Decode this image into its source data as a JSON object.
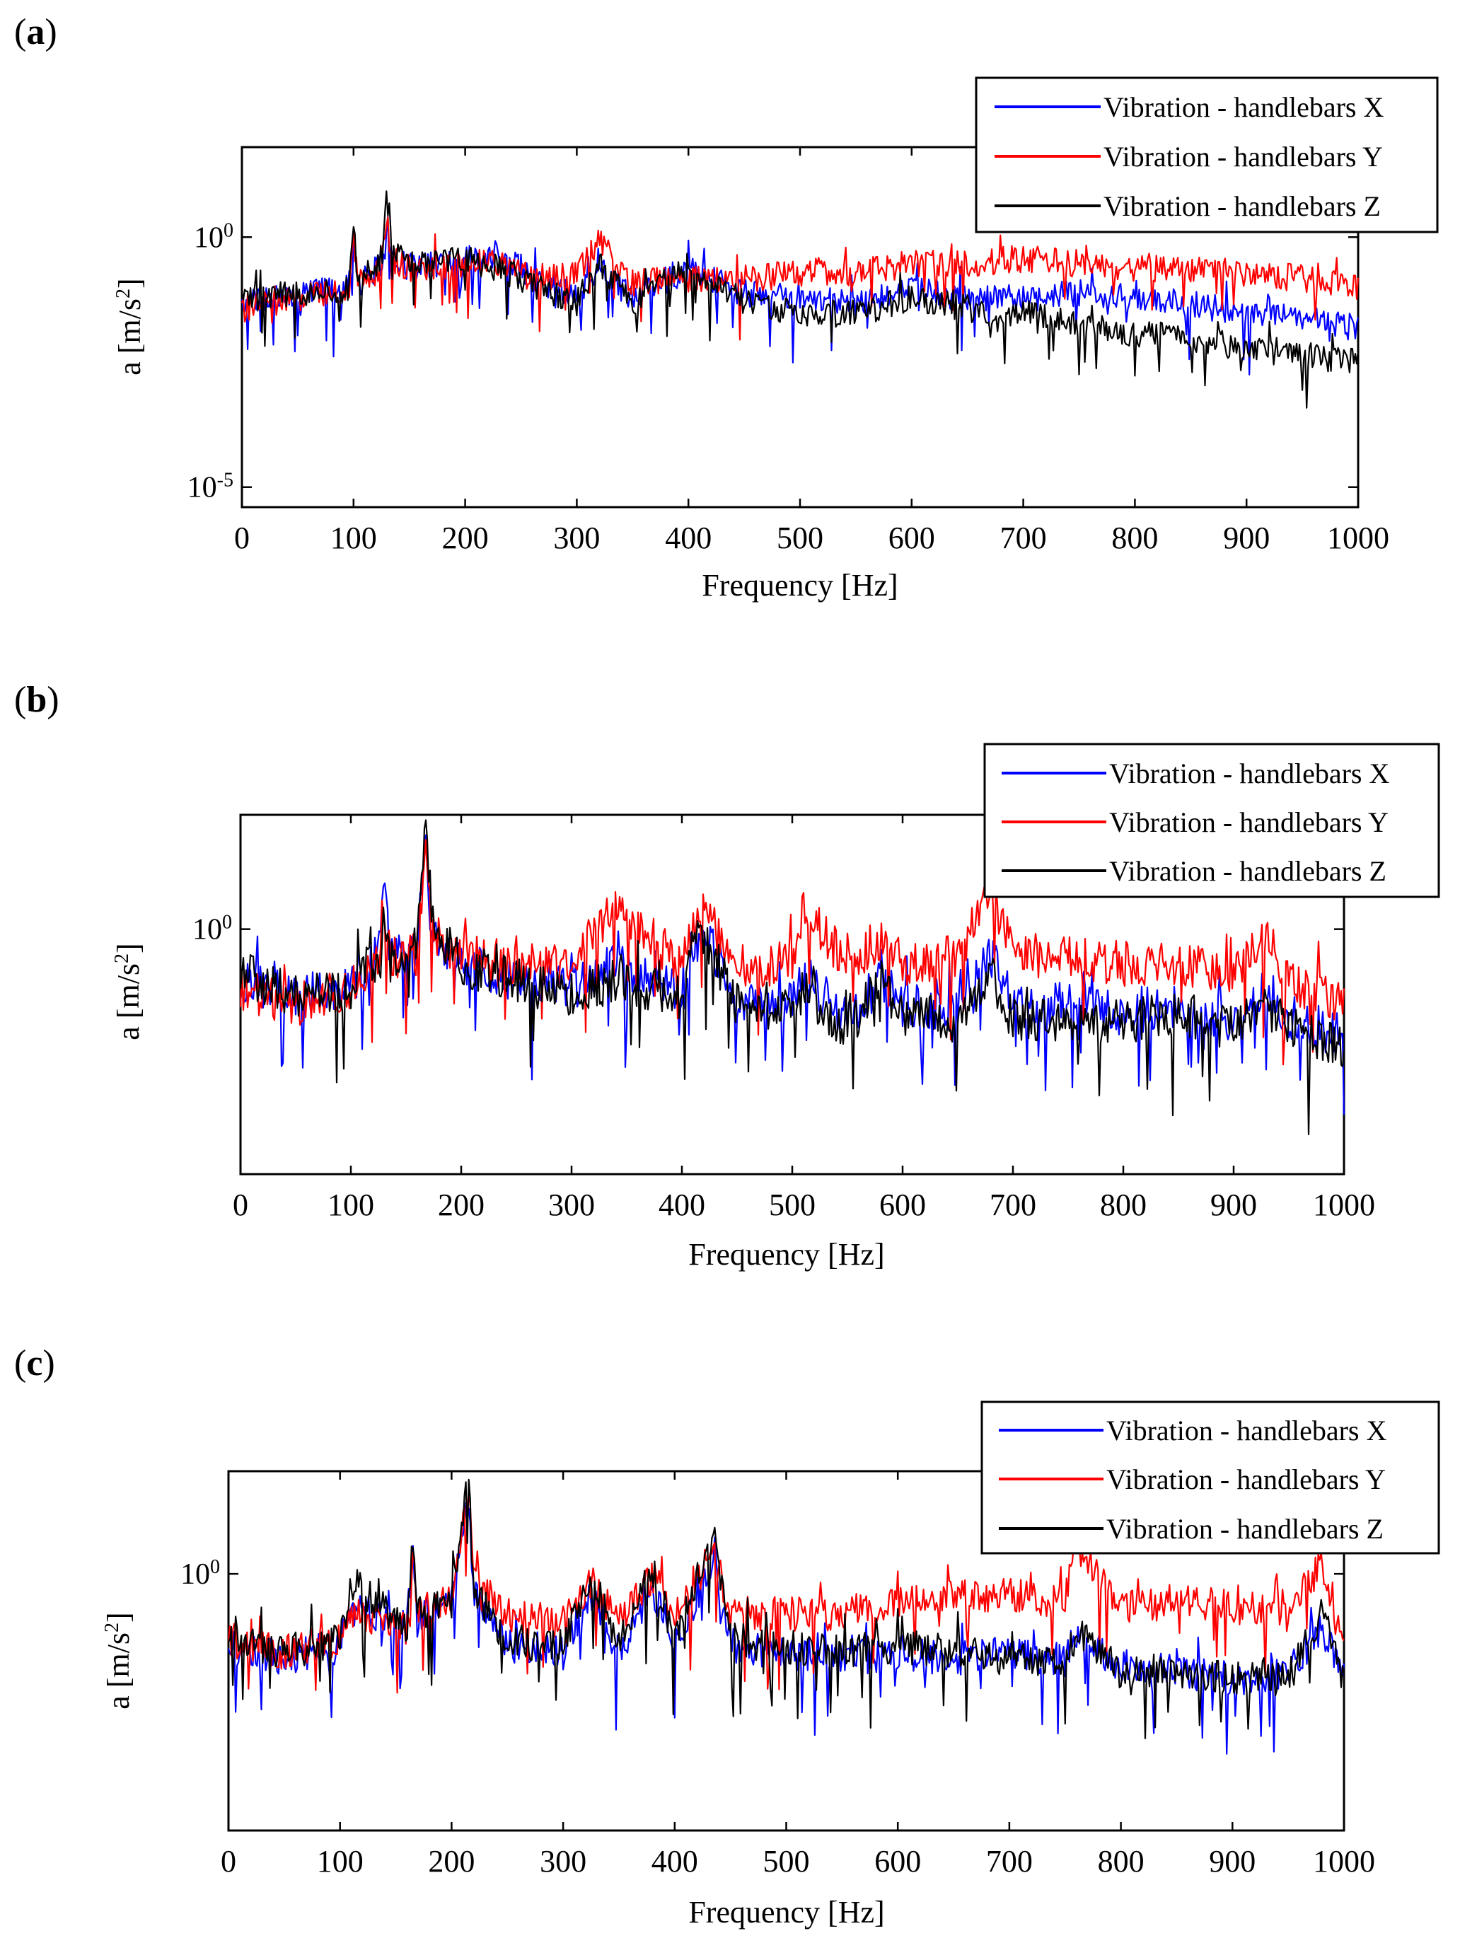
{
  "figure": {
    "series_colors": {
      "x": "#0000ff",
      "y": "#ff0000",
      "z": "#000000"
    }
  },
  "chart_data": [
    {
      "type": "line",
      "panel_label": "a",
      "title": "",
      "xlabel": "Frequency [Hz]",
      "ylabel": "a [m/s^2]",
      "yscale": "log",
      "xlim": [
        0,
        1000
      ],
      "ylim_log10": [
        -5.4,
        1.8
      ],
      "xticks": [
        0,
        100,
        200,
        300,
        400,
        500,
        600,
        700,
        800,
        900,
        1000
      ],
      "yticks": [
        {
          "value_log10": 0,
          "base": "10",
          "exp": "0"
        },
        {
          "value_log10": -5,
          "base": "10",
          "exp": "-5"
        }
      ],
      "legend": {
        "position": "top-right, above plot",
        "entries": [
          "Vibration - handlebars X",
          "Vibration - handlebars Y",
          "Vibration - handlebars Z"
        ]
      },
      "series": [
        {
          "name": "Vibration - handlebars X",
          "color": "#0000ff",
          "x": [
            0,
            50,
            95,
            100,
            105,
            125,
            130,
            135,
            150,
            200,
            230,
            260,
            300,
            320,
            350,
            400,
            450,
            500,
            550,
            600,
            650,
            700,
            750,
            800,
            850,
            900,
            950,
            1000
          ],
          "log10_a": [
            -1.3,
            -1.1,
            -1.0,
            0.1,
            -0.9,
            -0.5,
            0.5,
            -0.3,
            -0.6,
            -0.4,
            -0.3,
            -0.8,
            -1.2,
            -0.6,
            -1.2,
            -0.6,
            -1.1,
            -1.2,
            -1.3,
            -1.0,
            -1.2,
            -1.2,
            -1.1,
            -1.2,
            -1.3,
            -1.5,
            -1.6,
            -1.8
          ]
        },
        {
          "name": "Vibration - handlebars Y",
          "color": "#ff0000",
          "x": [
            0,
            50,
            95,
            100,
            105,
            125,
            130,
            135,
            150,
            200,
            230,
            260,
            300,
            320,
            350,
            400,
            450,
            500,
            550,
            600,
            650,
            700,
            750,
            800,
            850,
            900,
            950,
            1000
          ],
          "log10_a": [
            -1.4,
            -1.2,
            -1.0,
            0.0,
            -0.9,
            -0.6,
            0.3,
            -0.4,
            -0.6,
            -0.5,
            -0.5,
            -0.8,
            -0.7,
            0.0,
            -0.9,
            -0.8,
            -0.8,
            -0.7,
            -0.7,
            -0.5,
            -0.5,
            -0.4,
            -0.5,
            -0.6,
            -0.6,
            -0.7,
            -0.8,
            -1.0
          ]
        },
        {
          "name": "Vibration - handlebars Z",
          "color": "#000000",
          "x": [
            0,
            50,
            95,
            100,
            105,
            125,
            130,
            135,
            150,
            200,
            230,
            260,
            300,
            320,
            350,
            400,
            450,
            500,
            550,
            600,
            650,
            700,
            750,
            800,
            850,
            900,
            950,
            1000
          ],
          "log10_a": [
            -1.2,
            -1.1,
            -1.0,
            0.1,
            -0.9,
            -0.4,
            0.9,
            -0.2,
            -0.5,
            -0.4,
            -0.6,
            -0.9,
            -1.3,
            -0.5,
            -1.3,
            -0.5,
            -1.3,
            -1.5,
            -1.5,
            -1.2,
            -1.4,
            -1.5,
            -1.7,
            -1.9,
            -2.0,
            -2.2,
            -2.3,
            -2.5
          ]
        }
      ]
    },
    {
      "type": "line",
      "panel_label": "b",
      "title": "",
      "xlabel": "Frequency [Hz]",
      "ylabel": "a [m/s^2]",
      "yscale": "log",
      "xlim": [
        0,
        1000
      ],
      "ylim_log10": [
        -3.0,
        1.4
      ],
      "xticks": [
        0,
        100,
        200,
        300,
        400,
        500,
        600,
        700,
        800,
        900,
        1000
      ],
      "yticks": [
        {
          "value_log10": 0,
          "base": "10",
          "exp": "0"
        }
      ],
      "legend": {
        "position": "top-right, above plot",
        "entries": [
          "Vibration - handlebars X",
          "Vibration - handlebars Y",
          "Vibration - handlebars Z"
        ]
      },
      "series": [
        {
          "name": "Vibration - handlebars X",
          "color": "#0000ff",
          "x": [
            0,
            50,
            100,
            125,
            130,
            135,
            160,
            168,
            175,
            200,
            250,
            300,
            340,
            400,
            415,
            450,
            500,
            510,
            550,
            580,
            600,
            650,
            680,
            700,
            750,
            800,
            850,
            900,
            930,
            950,
            1000
          ],
          "log10_a": [
            -0.6,
            -0.8,
            -0.7,
            -0.3,
            0.6,
            -0.3,
            -0.2,
            1.0,
            0.0,
            -0.4,
            -0.6,
            -0.7,
            -0.4,
            -0.7,
            0.1,
            -0.8,
            -0.9,
            -0.5,
            -1.1,
            -0.6,
            -0.9,
            -1.0,
            -0.3,
            -0.9,
            -0.9,
            -1.0,
            -0.9,
            -1.1,
            -0.7,
            -1.1,
            -1.3
          ]
        },
        {
          "name": "Vibration - handlebars Y",
          "color": "#ff0000",
          "x": [
            0,
            50,
            100,
            125,
            130,
            135,
            160,
            168,
            175,
            200,
            250,
            300,
            340,
            400,
            415,
            450,
            500,
            510,
            550,
            580,
            600,
            650,
            680,
            700,
            750,
            800,
            850,
            900,
            930,
            950,
            1000
          ],
          "log10_a": [
            -0.7,
            -0.9,
            -0.7,
            -0.3,
            0.4,
            -0.3,
            -0.3,
            1.2,
            0.0,
            -0.3,
            -0.4,
            -0.4,
            0.3,
            -0.4,
            0.3,
            -0.4,
            -0.4,
            0.3,
            -0.4,
            -0.1,
            -0.4,
            -0.3,
            0.5,
            -0.3,
            -0.3,
            -0.4,
            -0.4,
            -0.5,
            0.0,
            -0.6,
            -0.9
          ]
        },
        {
          "name": "Vibration - handlebars Z",
          "color": "#000000",
          "x": [
            0,
            50,
            100,
            125,
            130,
            135,
            160,
            168,
            175,
            200,
            250,
            300,
            340,
            400,
            415,
            450,
            500,
            510,
            550,
            580,
            600,
            650,
            680,
            700,
            750,
            800,
            850,
            900,
            930,
            950,
            1000
          ],
          "log10_a": [
            -0.5,
            -0.8,
            -0.7,
            -0.3,
            0.3,
            -0.4,
            -0.2,
            1.3,
            0.0,
            -0.4,
            -0.6,
            -0.8,
            -0.6,
            -0.8,
            0.1,
            -0.9,
            -1.0,
            -0.7,
            -1.2,
            -0.6,
            -1.0,
            -1.1,
            -0.5,
            -1.1,
            -1.1,
            -1.1,
            -1.0,
            -1.2,
            -0.9,
            -1.2,
            -1.4
          ]
        }
      ]
    },
    {
      "type": "line",
      "panel_label": "c",
      "title": "",
      "xlabel": "Frequency [Hz]",
      "ylabel": "a [m/s^2]",
      "yscale": "log",
      "xlim": [
        0,
        1000
      ],
      "ylim_log10": [
        -4.0,
        1.6
      ],
      "xticks": [
        0,
        100,
        200,
        300,
        400,
        500,
        600,
        700,
        800,
        900,
        1000
      ],
      "yticks": [
        {
          "value_log10": 0,
          "base": "10",
          "exp": "0"
        }
      ],
      "legend": {
        "position": "top-right, inside plot",
        "entries": [
          "Vibration - handlebars X",
          "Vibration - handlebars Y",
          "Vibration - handlebars Z"
        ]
      },
      "series": [
        {
          "name": "Vibration - handlebars X",
          "color": "#0000ff",
          "x": [
            0,
            50,
            100,
            110,
            160,
            165,
            170,
            200,
            215,
            220,
            250,
            300,
            325,
            350,
            380,
            400,
            435,
            450,
            500,
            550,
            600,
            650,
            700,
            750,
            760,
            800,
            850,
            900,
            950,
            980,
            1000
          ],
          "log10_a": [
            -1.1,
            -1.3,
            -1.1,
            -0.5,
            -0.8,
            0.4,
            -0.6,
            -0.5,
            1.2,
            -0.2,
            -1.1,
            -1.2,
            -0.3,
            -1.2,
            -0.2,
            -1.1,
            0.3,
            -1.1,
            -1.2,
            -1.3,
            -1.2,
            -1.3,
            -1.2,
            -1.3,
            -0.9,
            -1.4,
            -1.5,
            -1.6,
            -1.5,
            -0.8,
            -1.5
          ]
        },
        {
          "name": "Vibration - handlebars Y",
          "color": "#ff0000",
          "x": [
            0,
            50,
            100,
            110,
            160,
            165,
            170,
            200,
            215,
            220,
            250,
            300,
            325,
            350,
            380,
            400,
            435,
            450,
            500,
            550,
            600,
            650,
            700,
            750,
            760,
            800,
            850,
            900,
            950,
            980,
            1000
          ],
          "log10_a": [
            -1.0,
            -1.2,
            -1.0,
            -0.6,
            -0.8,
            0.3,
            -0.6,
            -0.3,
            1.3,
            -0.1,
            -0.6,
            -0.7,
            -0.1,
            -0.7,
            0.0,
            -0.6,
            0.4,
            -0.6,
            -0.6,
            -0.6,
            -0.4,
            -0.3,
            -0.3,
            -0.4,
            0.4,
            -0.5,
            -0.4,
            -0.5,
            -0.6,
            0.2,
            -0.9
          ]
        },
        {
          "name": "Vibration - handlebars Z",
          "color": "#000000",
          "x": [
            0,
            50,
            100,
            110,
            160,
            165,
            170,
            200,
            215,
            220,
            250,
            300,
            325,
            350,
            380,
            400,
            435,
            450,
            500,
            550,
            600,
            650,
            700,
            750,
            760,
            800,
            850,
            900,
            950,
            980,
            1000
          ],
          "log10_a": [
            -1.0,
            -1.2,
            -1.0,
            -0.1,
            -0.8,
            0.5,
            -0.6,
            -0.4,
            1.5,
            -0.2,
            -1.0,
            -1.1,
            0.0,
            -1.1,
            0.1,
            -1.0,
            0.6,
            -1.0,
            -1.1,
            -1.2,
            -1.1,
            -1.2,
            -1.3,
            -1.4,
            -0.9,
            -1.5,
            -1.5,
            -1.6,
            -1.6,
            -0.6,
            -1.6
          ]
        }
      ]
    }
  ]
}
